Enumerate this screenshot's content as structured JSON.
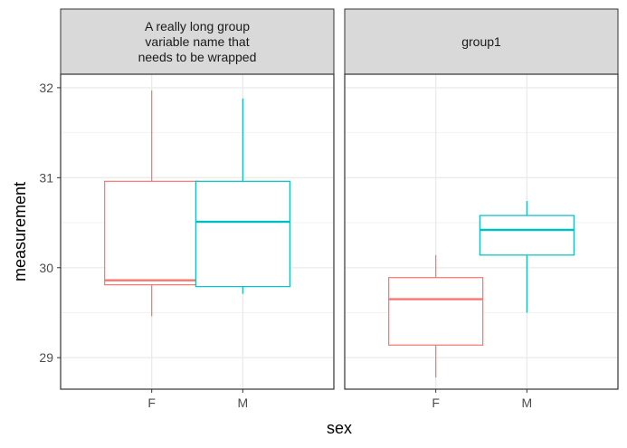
{
  "chart_data": {
    "type": "boxplot",
    "xlabel": "sex",
    "ylabel": "measurement",
    "ylim": [
      28.65,
      32.15
    ],
    "yticks": [
      29,
      30,
      31,
      32
    ],
    "categories": [
      "F",
      "M"
    ],
    "colors": {
      "F": "#F8766D",
      "M": "#00BFC4"
    },
    "panels": [
      {
        "strip": [
          "A really long group",
          "variable name that",
          "needs to be wrapped"
        ],
        "boxes": [
          {
            "category": "F",
            "lower_whisker": 29.46,
            "q1": 29.81,
            "median": 29.86,
            "q3": 30.96,
            "upper_whisker": 31.97
          },
          {
            "category": "M",
            "lower_whisker": 29.71,
            "q1": 29.79,
            "median": 30.51,
            "q3": 30.96,
            "upper_whisker": 31.88
          }
        ]
      },
      {
        "strip": [
          "group1"
        ],
        "boxes": [
          {
            "category": "F",
            "lower_whisker": 28.78,
            "q1": 29.14,
            "median": 29.65,
            "q3": 29.89,
            "upper_whisker": 30.14
          },
          {
            "category": "M",
            "lower_whisker": 29.5,
            "q1": 30.14,
            "median": 30.42,
            "q3": 30.58,
            "upper_whisker": 30.74
          }
        ]
      }
    ]
  }
}
